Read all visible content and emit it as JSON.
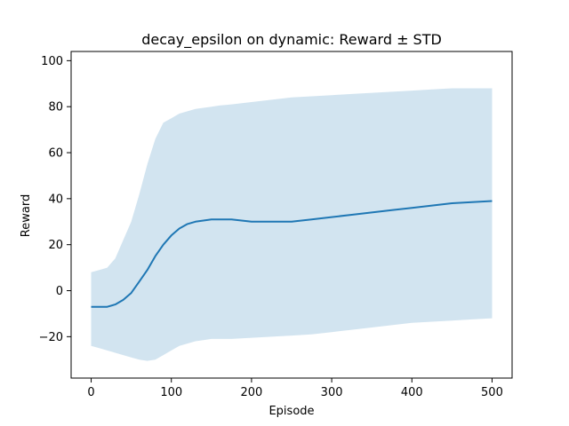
{
  "chart_data": {
    "type": "line",
    "title": "decay_epsilon on dynamic: Reward ± STD",
    "xlabel": "Episode",
    "ylabel": "Reward",
    "xlim": [
      -25,
      525
    ],
    "ylim": [
      -38,
      104
    ],
    "xticks": [
      0,
      100,
      200,
      300,
      400,
      500
    ],
    "yticks": [
      -20,
      0,
      20,
      40,
      60,
      80,
      100
    ],
    "xtick_labels": [
      "0",
      "100",
      "200",
      "300",
      "400",
      "500"
    ],
    "ytick_labels": [
      "−20",
      "0",
      "20",
      "40",
      "60",
      "80",
      "100"
    ],
    "grid": false,
    "colors": {
      "line": "#1f77b4",
      "band": "#1f77b4",
      "band_opacity": 0.2
    },
    "series": [
      {
        "x": [
          0,
          10,
          20,
          30,
          40,
          50,
          60,
          70,
          80,
          90,
          100,
          110,
          120,
          130,
          140,
          150,
          160,
          175,
          200,
          225,
          250,
          275,
          300,
          325,
          350,
          375,
          400,
          425,
          450,
          475,
          500
        ],
        "mean": [
          -7,
          -7,
          -7,
          -6,
          -4,
          -1,
          4,
          9,
          15,
          20,
          24,
          27,
          29,
          30,
          30.5,
          31,
          31,
          31,
          30,
          30,
          30,
          31,
          32,
          33,
          34,
          35,
          36,
          37,
          38,
          38.5,
          39
        ],
        "upper": [
          8,
          9,
          10,
          14,
          22,
          30,
          42,
          55,
          66,
          73,
          75,
          77,
          78,
          79,
          79.5,
          80,
          80.5,
          81,
          82,
          83,
          84,
          84.5,
          85,
          85.5,
          86,
          86.5,
          87,
          87.5,
          88,
          88,
          88
        ],
        "lower": [
          -24,
          -25,
          -26,
          -27,
          -28,
          -29,
          -30,
          -30.5,
          -30,
          -28,
          -26,
          -24,
          -23,
          -22,
          -21.5,
          -21,
          -21,
          -21,
          -20.5,
          -20,
          -19.5,
          -19,
          -18,
          -17,
          -16,
          -15,
          -14,
          -13.5,
          -13,
          -12.5,
          -12
        ]
      }
    ]
  }
}
